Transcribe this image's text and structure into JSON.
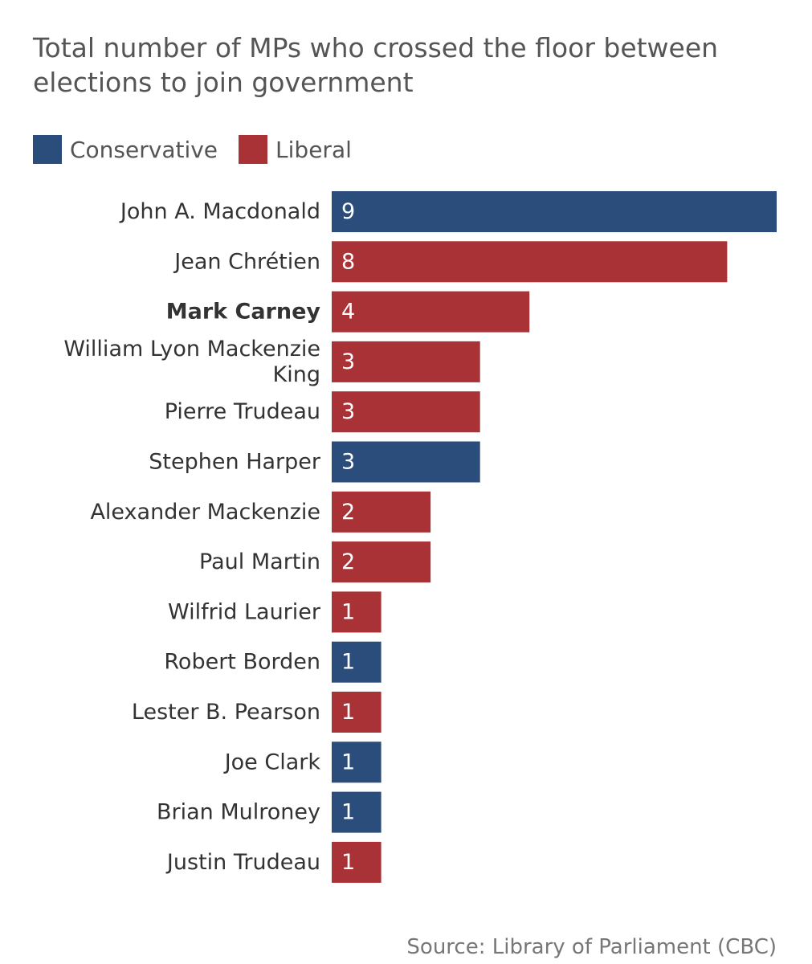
{
  "chart_data": {
    "type": "bar",
    "orientation": "horizontal",
    "title": "",
    "subtitle": "Total number of MPs who crossed the floor between elections to join government",
    "legend": [
      {
        "name": "Conservative",
        "color": "#2b4d7c"
      },
      {
        "name": "Liberal",
        "color": "#a83235"
      }
    ],
    "categories": [
      {
        "label": "John A. Macdonald",
        "value": 9,
        "party": "Conservative",
        "bold": false
      },
      {
        "label": "Jean Chrétien",
        "value": 8,
        "party": "Liberal",
        "bold": false
      },
      {
        "label": "Mark Carney",
        "value": 4,
        "party": "Liberal",
        "bold": true
      },
      {
        "label": "William Lyon Mackenzie King",
        "value": 3,
        "party": "Liberal",
        "bold": false
      },
      {
        "label": "Pierre Trudeau",
        "value": 3,
        "party": "Liberal",
        "bold": false
      },
      {
        "label": "Stephen Harper",
        "value": 3,
        "party": "Conservative",
        "bold": false
      },
      {
        "label": "Alexander Mackenzie",
        "value": 2,
        "party": "Liberal",
        "bold": false
      },
      {
        "label": "Paul Martin",
        "value": 2,
        "party": "Liberal",
        "bold": false
      },
      {
        "label": "Wilfrid Laurier",
        "value": 1,
        "party": "Liberal",
        "bold": false
      },
      {
        "label": "Robert Borden",
        "value": 1,
        "party": "Conservative",
        "bold": false
      },
      {
        "label": "Lester B. Pearson",
        "value": 1,
        "party": "Liberal",
        "bold": false
      },
      {
        "label": "Joe Clark",
        "value": 1,
        "party": "Conservative",
        "bold": false
      },
      {
        "label": "Brian Mulroney",
        "value": 1,
        "party": "Conservative",
        "bold": false
      },
      {
        "label": "Justin Trudeau",
        "value": 1,
        "party": "Liberal",
        "bold": false
      }
    ],
    "xlim": [
      0,
      9
    ],
    "grid": false,
    "legend_placement": "top-left"
  },
  "colors": {
    "conservative": "#2b4d7c",
    "liberal": "#a83235"
  },
  "source": "Source: Library of Parliament (CBC)"
}
